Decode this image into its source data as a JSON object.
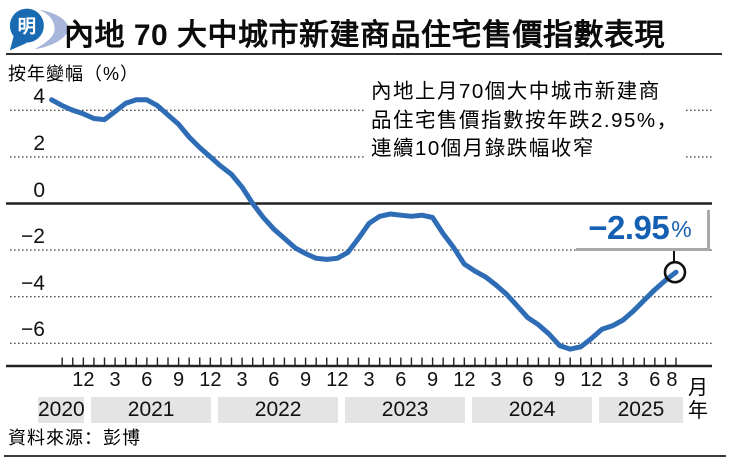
{
  "header": {
    "logo_text": "明",
    "title": "內地 70 大中城市新建商品住宅售價指數表現"
  },
  "y_axis_label": "按年變幅（%）",
  "annotation": {
    "lines": [
      "內地上月70個大中城市新建商",
      "品住宅售價指數按年跌2.95%，",
      "連續10個月錄跌幅收窄"
    ]
  },
  "callout": {
    "value": "−2.95",
    "unit": "%"
  },
  "axis_units": {
    "month": "月",
    "year": "年"
  },
  "source": "資料來源：彭博",
  "colors": {
    "line": "#2e6cb5",
    "callout_text": "#1560b2",
    "logo_blue": "#1a6ab2",
    "logo_swoosh": "#a9b6dc",
    "year_band": "#e4e4e4",
    "axis": "#222222"
  },
  "chart_data": {
    "type": "line",
    "title": "內地70大中城市新建商品住宅售價指數表現",
    "ylabel": "按年變幅（%）",
    "xlabel": "月 / 年",
    "start_month": "2020-09",
    "end_month": "2025-08",
    "monthly_values": [
      4.45,
      4.2,
      4.0,
      3.85,
      3.65,
      3.6,
      3.95,
      4.3,
      4.45,
      4.45,
      4.2,
      3.8,
      3.4,
      2.85,
      2.4,
      2.0,
      1.6,
      1.25,
      0.7,
      0.0,
      -0.6,
      -1.1,
      -1.5,
      -1.9,
      -2.15,
      -2.35,
      -2.4,
      -2.35,
      -2.1,
      -1.5,
      -0.85,
      -0.55,
      -0.45,
      -0.5,
      -0.55,
      -0.5,
      -0.6,
      -1.3,
      -1.9,
      -2.6,
      -2.9,
      -3.15,
      -3.5,
      -3.9,
      -4.4,
      -4.9,
      -5.2,
      -5.6,
      -6.1,
      -6.25,
      -6.15,
      -5.8,
      -5.4,
      -5.25,
      -5.0,
      -4.6,
      -4.15,
      -3.7,
      -3.3,
      -2.95
    ],
    "y_ticks": [
      4,
      2,
      0,
      -2,
      -4,
      -6
    ],
    "ylim": [
      -7,
      5
    ],
    "grid": "dotted horizontal, solid zero line",
    "x_tick_labels": [
      "12",
      "3",
      "6",
      "9",
      "12",
      "3",
      "6",
      "9",
      "12",
      "3",
      "6",
      "9",
      "12",
      "3",
      "6",
      "9",
      "12",
      "3",
      "6",
      "8"
    ],
    "years": [
      "2020",
      "2021",
      "2022",
      "2023",
      "2024",
      "2025"
    ],
    "legend_position": "none",
    "highlight_last": {
      "month": "2025-08",
      "value": -2.95,
      "label": "−2.95%"
    }
  }
}
